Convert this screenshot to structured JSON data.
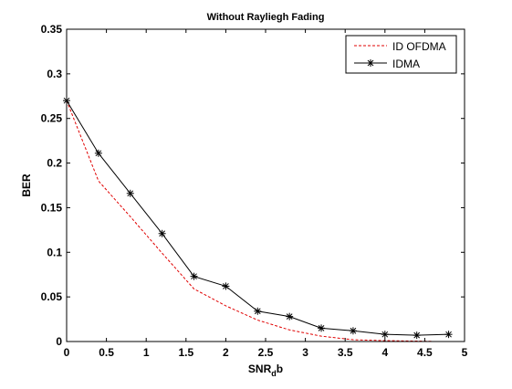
{
  "chart_data": {
    "type": "line",
    "title": "Without Rayliegh Fading",
    "xlabel": {
      "main": "SNR",
      "sub": "d",
      "tail": "b"
    },
    "ylabel": "BER",
    "xlim": [
      0,
      5
    ],
    "ylim": [
      0,
      0.35
    ],
    "xticks": [
      0,
      0.5,
      1,
      1.5,
      2,
      2.5,
      3,
      3.5,
      4,
      4.5,
      5
    ],
    "xtick_labels": [
      "0",
      "0.5",
      "1",
      "1.5",
      "2",
      "2.5",
      "3",
      "3.5",
      "4",
      "4.5",
      "5"
    ],
    "yticks": [
      0,
      0.05,
      0.1,
      0.15,
      0.2,
      0.25,
      0.3,
      0.35
    ],
    "ytick_labels": [
      "0",
      "0.05",
      "0.1",
      "0.15",
      "0.2",
      "0.25",
      "0.3",
      "0.35"
    ],
    "grid": false,
    "legend_position": "top-right",
    "series": [
      {
        "name": "ID OFDMA",
        "color": "#e00000",
        "line_style": "dashed",
        "marker": "none",
        "x": [
          0,
          0.4,
          0.8,
          1.2,
          1.6,
          2.0,
          2.4,
          2.8,
          3.2,
          3.6,
          4.0,
          4.4,
          4.6
        ],
        "y": [
          0.27,
          0.18,
          0.14,
          0.099,
          0.059,
          0.04,
          0.024,
          0.013,
          0.006,
          0.002,
          0.001,
          0.0005,
          0.0002
        ]
      },
      {
        "name": "IDMA",
        "color": "#000000",
        "line_style": "solid",
        "marker": "asterisk",
        "x": [
          0,
          0.4,
          0.8,
          1.2,
          1.6,
          2.0,
          2.4,
          2.8,
          3.2,
          3.6,
          4.0,
          4.4,
          4.8
        ],
        "y": [
          0.27,
          0.211,
          0.166,
          0.121,
          0.073,
          0.062,
          0.034,
          0.028,
          0.015,
          0.012,
          0.008,
          0.007,
          0.008
        ]
      }
    ]
  }
}
